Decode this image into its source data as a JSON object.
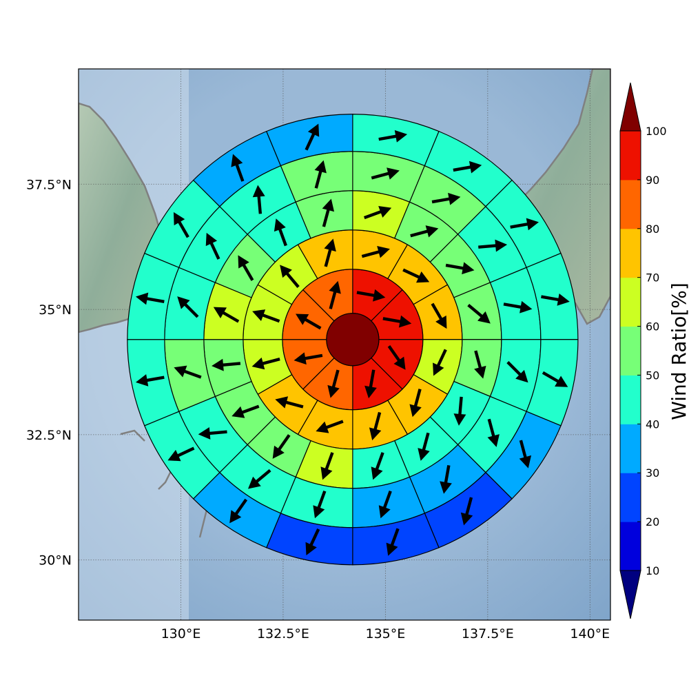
{
  "chart_data": {
    "type": "polar_sector_map",
    "projection": "equirectangular",
    "lon_range": [
      127.5,
      140.5
    ],
    "lat_range": [
      28.8,
      39.8
    ],
    "center": {
      "lon": 134.2,
      "lat": 34.4
    },
    "x_ticks": [
      {
        "value": 130.0,
        "label": "130°E"
      },
      {
        "value": 132.5,
        "label": "132.5°E"
      },
      {
        "value": 135.0,
        "label": "135°E"
      },
      {
        "value": 137.5,
        "label": "137.5°E"
      },
      {
        "value": 140.0,
        "label": "140°E"
      }
    ],
    "y_ticks": [
      {
        "value": 30.0,
        "label": "30°N"
      },
      {
        "value": 32.5,
        "label": "32.5°N"
      },
      {
        "value": 35.0,
        "label": "35°N"
      },
      {
        "value": 37.5,
        "label": "37.5°N"
      }
    ],
    "grid": true,
    "colorbar": {
      "label": "Wind Ratio[%]",
      "ticks": [
        10,
        20,
        30,
        40,
        50,
        60,
        70,
        80,
        90,
        100
      ],
      "extend": "both",
      "under_color": "#000080",
      "over_color": "#800000",
      "bins": [
        {
          "min": 10,
          "max": 20,
          "color": "#0000dd"
        },
        {
          "min": 20,
          "max": 30,
          "color": "#0044ff"
        },
        {
          "min": 30,
          "max": 40,
          "color": "#00aaff"
        },
        {
          "min": 40,
          "max": 50,
          "color": "#22ffcc"
        },
        {
          "min": 50,
          "max": 60,
          "color": "#77ff77"
        },
        {
          "min": 60,
          "max": 70,
          "color": "#ccff22"
        },
        {
          "min": 70,
          "max": 80,
          "color": "#ffc400"
        },
        {
          "min": 80,
          "max": 90,
          "color": "#ff6600"
        },
        {
          "min": 90,
          "max": 100,
          "color": "#ee1100"
        }
      ]
    },
    "sector_order": "clockwise from north",
    "center_cell": {
      "value": 100,
      "arrow_deg": null
    },
    "rings": [
      {
        "values": [
          95,
          95,
          95,
          95,
          85,
          85,
          85,
          85
        ],
        "arrow_deg": [
          100,
          100,
          145,
          190,
          195,
          260,
          300,
          15
        ]
      },
      {
        "values": [
          75,
          75,
          75,
          65,
          75,
          75,
          75,
          75,
          65,
          65,
          65,
          75
        ],
        "arrow_deg": [
          75,
          115,
          150,
          205,
          195,
          195,
          250,
          285,
          255,
          290,
          320,
          15
        ]
      },
      {
        "values": [
          65,
          55,
          55,
          55,
          55,
          45,
          45,
          45,
          65,
          55,
          55,
          55,
          65,
          55,
          45,
          55
        ],
        "arrow_deg": [
          70,
          75,
          100,
          130,
          165,
          185,
          195,
          200,
          200,
          215,
          250,
          265,
          300,
          330,
          340,
          15
        ]
      },
      {
        "values": [
          55,
          55,
          45,
          45,
          45,
          45,
          35,
          35,
          45,
          45,
          45,
          55,
          45,
          45,
          45,
          55
        ],
        "arrow_deg": [
          75,
          80,
          85,
          100,
          135,
          165,
          190,
          200,
          200,
          230,
          265,
          290,
          315,
          335,
          355,
          15
        ]
      },
      {
        "values": [
          45,
          45,
          45,
          45,
          45,
          35,
          25,
          25,
          25,
          35,
          45,
          45,
          45,
          45,
          35,
          35
        ],
        "arrow_deg": [
          80,
          80,
          80,
          100,
          120,
          165,
          195,
          200,
          205,
          215,
          245,
          260,
          280,
          330,
          340,
          25
        ]
      }
    ]
  }
}
